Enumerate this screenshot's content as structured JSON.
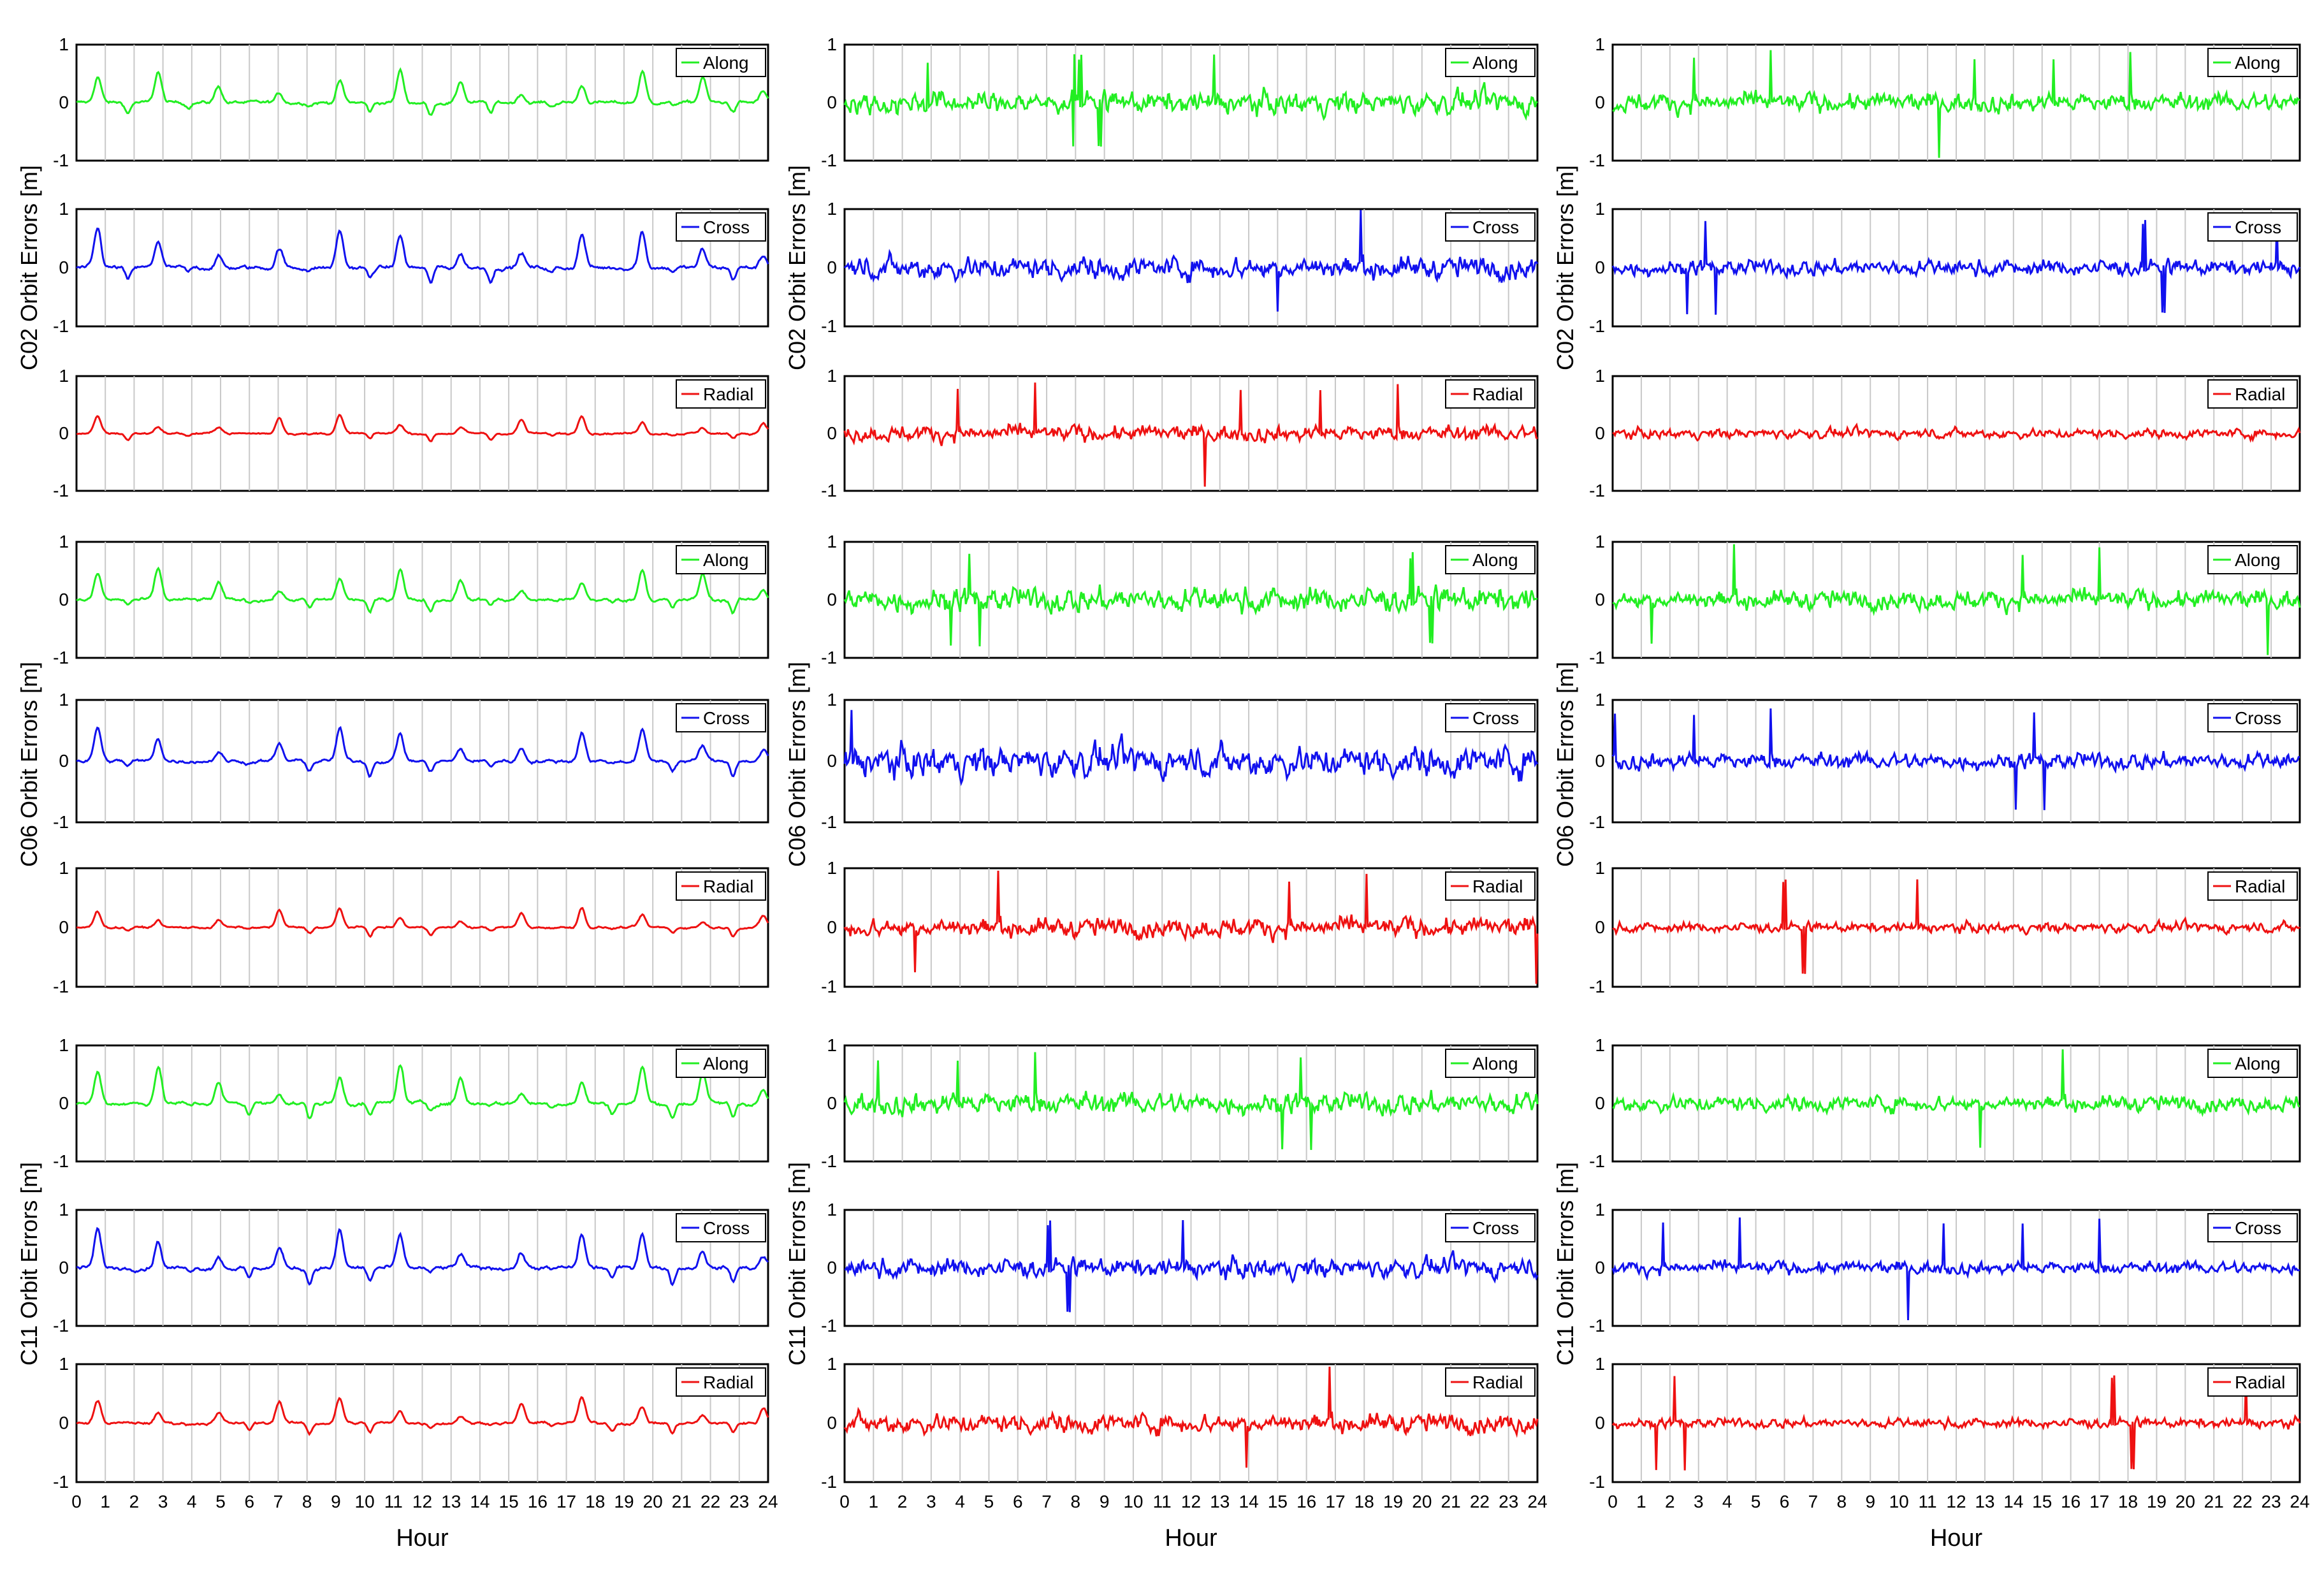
{
  "figure": {
    "x_label": "Hour",
    "x_ticks": [
      "0",
      "1",
      "2",
      "3",
      "4",
      "5",
      "6",
      "7",
      "8",
      "9",
      "10",
      "11",
      "12",
      "13",
      "14",
      "15",
      "16",
      "17",
      "18",
      "19",
      "20",
      "21",
      "22",
      "23",
      "24"
    ],
    "colors": {
      "Along": "#22ee22",
      "Cross": "#1111ee",
      "Radial": "#ee1111"
    }
  },
  "chart_data": {
    "type": "line",
    "x_unit": "Hour",
    "xlim": [
      0,
      24
    ],
    "ylim": [
      -1,
      1
    ],
    "y_ticks": [
      "1",
      "0",
      "-1"
    ],
    "grid": "vertical lines at each hour",
    "legend_position": "top-right",
    "rows": [
      {
        "satellite": "C02",
        "ylabel": "C02 Orbit Errors [m]"
      },
      {
        "satellite": "C06",
        "ylabel": "C06 Orbit Errors [m]"
      },
      {
        "satellite": "C11",
        "ylabel": "C11 Orbit Errors [m]"
      }
    ],
    "columns": [
      {
        "style": "smooth periodic",
        "spike_max_m": 0.9
      },
      {
        "style": "noisy",
        "spike_max_m": 1.0
      },
      {
        "style": "noisy, low amplitude",
        "spike_max_m": 1.0
      }
    ],
    "components": [
      "Along",
      "Cross",
      "Radial"
    ],
    "amplitude_m": {
      "C02": [
        [
          0.25,
          0.3,
          0.15
        ],
        [
          0.35,
          0.35,
          0.25
        ],
        [
          0.3,
          0.25,
          0.15
        ]
      ],
      "C06": [
        [
          0.25,
          0.25,
          0.15
        ],
        [
          0.4,
          0.45,
          0.3
        ],
        [
          0.3,
          0.25,
          0.15
        ]
      ],
      "C11": [
        [
          0.3,
          0.3,
          0.2
        ],
        [
          0.35,
          0.3,
          0.3
        ],
        [
          0.25,
          0.2,
          0.15
        ]
      ]
    }
  }
}
